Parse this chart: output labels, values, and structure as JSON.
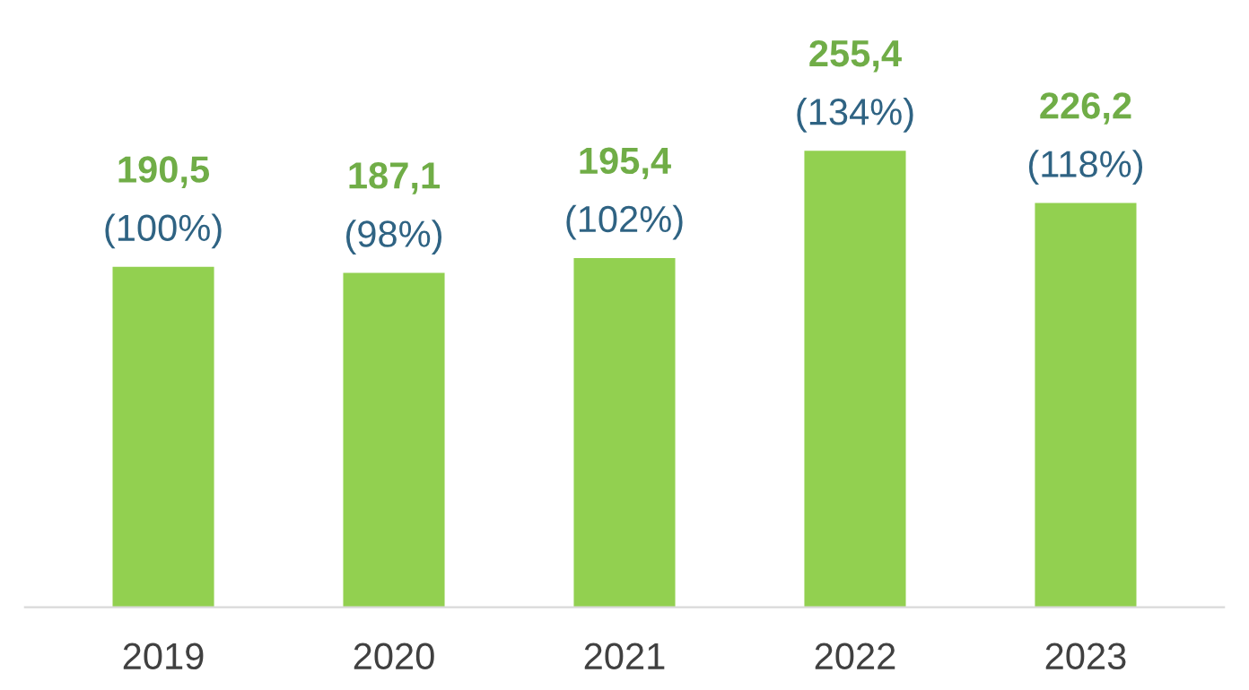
{
  "chart_data": {
    "type": "bar",
    "categories": [
      "2019",
      "2020",
      "2021",
      "2022",
      "2023"
    ],
    "values": [
      190.5,
      187.1,
      195.4,
      255.4,
      226.2
    ],
    "value_labels": [
      "190,5",
      "187,1",
      "195,4",
      "255,4",
      "226,2"
    ],
    "color": "#92d050",
    "annotations": [
      {
        "text": "(100%)",
        "x": "2019",
        "y": 190.5
      },
      {
        "text": "(98%)",
        "x": "2020",
        "y": 187.1
      },
      {
        "text": "(102%)",
        "x": "2021",
        "y": 195.4
      },
      {
        "text": "(134%)",
        "x": "2022",
        "y": 255.4
      },
      {
        "text": "(118%)",
        "x": "2023",
        "y": 226.2
      }
    ],
    "grid": false,
    "legend": false
  }
}
